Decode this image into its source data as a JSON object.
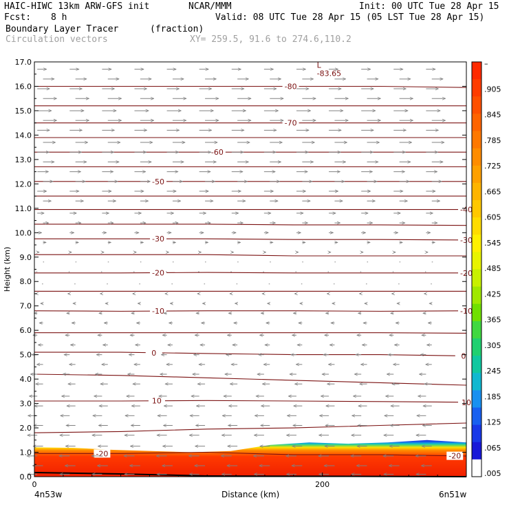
{
  "header": {
    "model": "HAIC-HIWC 13km ARW-GFS init",
    "org": "NCAR/MMM",
    "init": "Init: 00 UTC Tue 28 Apr 15",
    "fcst_label": "Fcst:",
    "fcst_value": "8 h",
    "valid": "Valid: 08 UTC Tue 28 Apr 15 (05 LST Tue 28 Apr 15)",
    "field": "Boundary Layer Tracer",
    "field_units": "(fraction)",
    "vectors": "Circulation vectors",
    "xy": "XY= 259.5, 91.6 to 274.6,110.2"
  },
  "colors": {
    "contour": "#7a1010",
    "vector": "#808080",
    "fill_bottom": "#f22000",
    "fill_mid_orange": "#ff8800",
    "fill_yellow": "#ffee00",
    "fill_green": "#22cc66",
    "fill_blue": "#1133dd"
  },
  "chart_data": {
    "type": "heatmap",
    "title": "Boundary Layer Tracer",
    "xlabel": "Distance (km)",
    "ylabel": "Height (km)",
    "xlim": [
      0,
      300
    ],
    "ylim": [
      0,
      17
    ],
    "x_ticks": [
      {
        "v": 0,
        "label": "0"
      },
      {
        "v": 200,
        "label": "200"
      }
    ],
    "x_end_labels": {
      "left": "4n53w",
      "right": "6n51w"
    },
    "y_ticks": [
      "0.0",
      "1.0",
      "2.0",
      "3.0",
      "4.0",
      "5.0",
      "6.0",
      "7.0",
      "8.0",
      "9.0",
      "10.0",
      "11.0",
      "12.0",
      "13.0",
      "14.0",
      "15.0",
      "16.0",
      "17.0"
    ],
    "colorbar": {
      "labels": [
        "–",
        ".905",
        ".845",
        ".785",
        ".725",
        ".665",
        ".605",
        ".545",
        ".485",
        ".425",
        ".365",
        ".305",
        ".245",
        ".185",
        ".125",
        ".065",
        ".005"
      ],
      "colors": [
        "#ff2a00",
        "#ff3c00",
        "#ff5000",
        "#ff6400",
        "#ff7800",
        "#ff8c00",
        "#ffa000",
        "#ffb400",
        "#ffc800",
        "#ffdc00",
        "#fff000",
        "#e8f400",
        "#c8f000",
        "#a0e800",
        "#70e000",
        "#40d840",
        "#20d070",
        "#10c8a0",
        "#10b8d0",
        "#1890f0",
        "#1860f0",
        "#1838e8",
        "#1818d8",
        "#ffffff"
      ]
    },
    "temperature_contours": [
      {
        "level": -20,
        "h": [
          0.95,
          0.95,
          1.0,
          0.9,
          0.9,
          0.85
        ],
        "label": "-20",
        "label_x": [
          47,
          292
        ]
      },
      {
        "level": 10,
        "h": [
          1.8,
          1.85,
          1.95,
          2.0,
          2.1,
          2.2
        ]
      },
      {
        "level": 10,
        "h": [
          3.1,
          3.1,
          3.12,
          3.1,
          3.08,
          3.05
        ],
        "label": "10",
        "label_x": [
          85,
          300
        ]
      },
      {
        "level": 0,
        "h": [
          4.2,
          4.15,
          4.05,
          3.95,
          3.85,
          3.75
        ]
      },
      {
        "level": 0,
        "h": [
          5.1,
          5.1,
          5.05,
          5.0,
          5.0,
          4.95
        ],
        "label": "0",
        "label_x": [
          83,
          298
        ]
      },
      {
        "level": -10,
        "h": [
          5.9,
          5.9,
          5.9,
          5.9,
          5.9,
          5.88
        ]
      },
      {
        "level": -10,
        "h": [
          6.8,
          6.78,
          6.8,
          6.8,
          6.78,
          6.8
        ],
        "label": "-10",
        "label_x": [
          86,
          300
        ]
      },
      {
        "level": -20,
        "h": [
          7.6,
          7.6,
          7.6,
          7.6,
          7.6,
          7.6
        ]
      },
      {
        "level": -20,
        "h": [
          8.35,
          8.35,
          8.37,
          8.35,
          8.35,
          8.35
        ],
        "label": "-20",
        "label_x": [
          86,
          300
        ]
      },
      {
        "level": -30,
        "h": [
          9.1,
          9.1,
          9.1,
          9.05,
          9.05,
          9.05
        ]
      },
      {
        "level": -30,
        "h": [
          9.75,
          9.75,
          9.75,
          9.72,
          9.72,
          9.7
        ],
        "label": "-30",
        "label_x": [
          86,
          300
        ]
      },
      {
        "level": -40,
        "h": [
          10.35,
          10.35,
          10.35,
          10.32,
          10.32,
          10.3
        ]
      },
      {
        "level": -40,
        "h": [
          10.95,
          10.95,
          10.95,
          10.95,
          10.95,
          10.95
        ],
        "label": "-40",
        "label_x": [
          300
        ]
      },
      {
        "level": -50,
        "h": [
          11.5,
          11.5,
          11.5,
          11.5,
          11.5,
          11.5
        ]
      },
      {
        "level": -50,
        "h": [
          12.1,
          12.1,
          12.1,
          12.1,
          12.1,
          12.1
        ],
        "label": "-50",
        "label_x": [
          86
        ]
      },
      {
        "level": -60,
        "h": [
          12.7,
          12.7,
          12.7,
          12.7,
          12.7,
          12.7
        ]
      },
      {
        "level": -60,
        "h": [
          13.3,
          13.3,
          13.3,
          13.3,
          13.3,
          13.3
        ],
        "label": "-60",
        "label_x": [
          127
        ]
      },
      {
        "level": -70,
        "h": [
          13.9,
          13.9,
          13.9,
          13.9,
          13.9,
          13.9
        ]
      },
      {
        "level": -70,
        "h": [
          14.5,
          14.5,
          14.5,
          14.5,
          14.5,
          14.5
        ],
        "label": "-70",
        "label_x": [
          178
        ]
      },
      {
        "level": -80,
        "h": [
          15.2,
          15.2,
          15.2,
          15.2,
          15.2,
          15.2
        ]
      },
      {
        "level": -80,
        "h": [
          16.0,
          16.0,
          16.0,
          16.0,
          16.0,
          15.95
        ],
        "label": "-80",
        "label_x": [
          178
        ]
      }
    ],
    "min_marker": {
      "x": 200,
      "y": 16.65,
      "symbol": "L",
      "value": "-83.65"
    },
    "tracer_top_height": [
      1.2,
      1.18,
      1.1,
      1.05,
      1.0,
      1.05,
      1.3,
      1.4,
      1.35,
      1.4,
      1.5,
      1.4
    ],
    "vector_rows_u": [
      {
        "h": 16.7,
        "u": 0.75
      },
      {
        "h": 16.3,
        "u": 0.9
      },
      {
        "h": 15.9,
        "u": 1.0
      },
      {
        "h": 15.5,
        "u": 1.1
      },
      {
        "h": 15.0,
        "u": 1.15
      },
      {
        "h": 14.6,
        "u": 1.1
      },
      {
        "h": 14.2,
        "u": 1.0
      },
      {
        "h": 13.7,
        "u": 1.0
      },
      {
        "h": 13.3,
        "u": 0.95
      },
      {
        "h": 12.9,
        "u": 0.9
      },
      {
        "h": 12.5,
        "u": 0.9
      },
      {
        "h": 12.1,
        "u": 0.8
      },
      {
        "h": 11.7,
        "u": 0.75
      },
      {
        "h": 11.3,
        "u": 0.65
      },
      {
        "h": 10.8,
        "u": 0.55
      },
      {
        "h": 10.4,
        "u": 0.45
      },
      {
        "h": 10.0,
        "u": 0.35
      },
      {
        "h": 9.6,
        "u": 0.25
      },
      {
        "h": 9.2,
        "u": 0.15
      },
      {
        "h": 8.8,
        "u": 0.05
      },
      {
        "h": 8.4,
        "u": -0.05
      },
      {
        "h": 7.9,
        "u": -0.1
      },
      {
        "h": 7.5,
        "u": -0.15
      },
      {
        "h": 7.1,
        "u": -0.2
      },
      {
        "h": 6.7,
        "u": -0.25
      },
      {
        "h": 6.3,
        "u": -0.3
      },
      {
        "h": 5.8,
        "u": -0.35
      },
      {
        "h": 5.4,
        "u": -0.4
      },
      {
        "h": 5.0,
        "u": -0.45
      },
      {
        "h": 4.6,
        "u": -0.5
      },
      {
        "h": 4.2,
        "u": -0.55
      },
      {
        "h": 3.8,
        "u": -0.6
      },
      {
        "h": 3.3,
        "u": -0.65
      },
      {
        "h": 2.9,
        "u": -0.7
      },
      {
        "h": 2.5,
        "u": -0.75
      },
      {
        "h": 2.1,
        "u": -0.75
      },
      {
        "h": 1.7,
        "u": -0.8
      },
      {
        "h": 1.25,
        "u": -0.8
      },
      {
        "h": 0.85,
        "u": -0.85
      },
      {
        "h": 0.45,
        "u": -0.85
      },
      {
        "h": 0.1,
        "u": -0.8
      }
    ]
  }
}
